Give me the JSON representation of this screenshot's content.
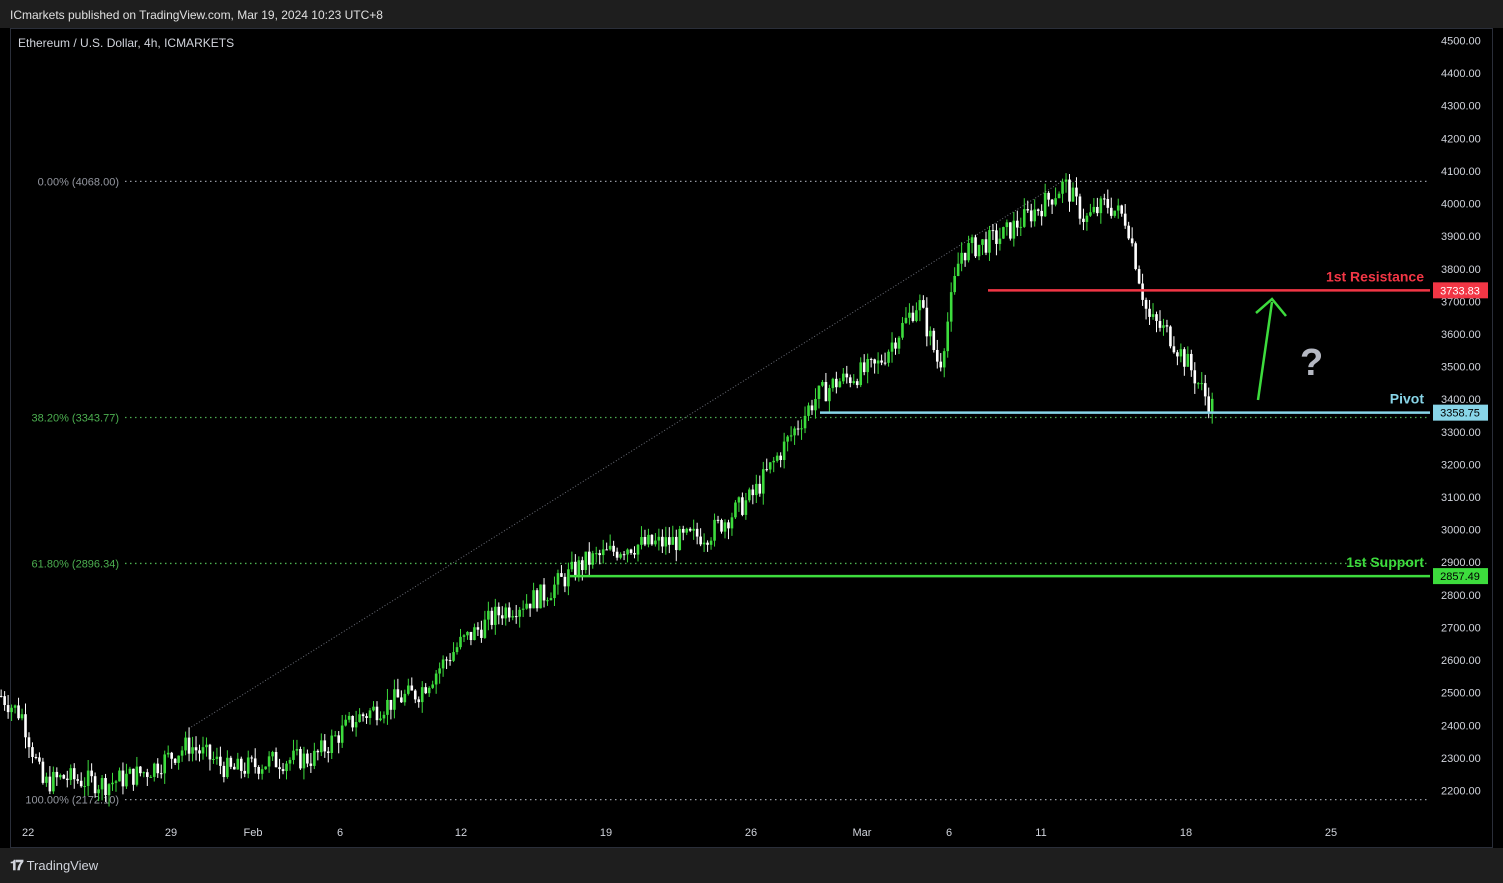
{
  "header": {
    "published": "ICmarkets published on TradingView.com, Mar 19, 2024 10:23 UTC+8"
  },
  "symbol_line": "Ethereum / U.S. Dollar, 4h, ICMARKETS",
  "footer": {
    "brand": "TradingView"
  },
  "chart_data": {
    "type": "candlestick",
    "y_axis": {
      "ticks": [
        2200,
        2300,
        2400,
        2500,
        2600,
        2700,
        2800,
        2900,
        3000,
        3100,
        3200,
        3300,
        3400,
        3500,
        3600,
        3700,
        3800,
        3900,
        4000,
        4100,
        4200,
        4300,
        4400,
        4500
      ],
      "tick_labels": [
        "2200.00",
        "2300.00",
        "2400.00",
        "2500.00",
        "2600.00",
        "2700.00",
        "2800.00",
        "2900.00",
        "3000.00",
        "3100.00",
        "3200.00",
        "3300.00",
        "3400.00",
        "3500.00",
        "3600.00",
        "3700.00",
        "3800.00",
        "3900.00",
        "4000.00",
        "4100.00",
        "4200.00",
        "4300.00",
        "4400.00",
        "4500.00"
      ],
      "range": [
        2130,
        4540
      ]
    },
    "x_axis": {
      "tick_labels": [
        "22",
        "29",
        "Feb",
        "6",
        "12",
        "19",
        "26",
        "Mar",
        "6",
        "11",
        "18",
        "25"
      ]
    },
    "fibonacci": [
      {
        "label": "0.00% (4068.00)",
        "value": 4068.0,
        "color": "#9598a1"
      },
      {
        "label": "38.20% (3343.77)",
        "value": 3343.77,
        "color": "#4caf50"
      },
      {
        "label": "61.80% (2896.34)",
        "value": 2896.34,
        "color": "#4caf50"
      },
      {
        "label": "100.00% (2172.10)",
        "value": 2172.1,
        "color": "#9598a1"
      }
    ],
    "levels": [
      {
        "name": "1st Resistance",
        "value": 3733.83,
        "label": "3733.83",
        "color": "#f23645"
      },
      {
        "name": "Pivot",
        "value": 3358.75,
        "label": "3358.75",
        "color": "#88d5e8"
      },
      {
        "name": "1st Support",
        "value": 2857.49,
        "label": "2857.49",
        "color": "#3ddc3d"
      }
    ],
    "annotation": {
      "text": "?",
      "arrow_direction": "up"
    },
    "price_path": [
      [
        "2024-01-21",
        2490
      ],
      [
        "2024-01-22",
        2430
      ],
      [
        "2024-01-23",
        2220
      ],
      [
        "2024-01-24",
        2240
      ],
      [
        "2024-01-26",
        2220
      ],
      [
        "2024-01-28",
        2260
      ],
      [
        "2024-01-30",
        2340
      ],
      [
        "2024-01-31",
        2300
      ],
      [
        "2024-02-01",
        2260
      ],
      [
        "2024-02-03",
        2290
      ],
      [
        "2024-02-05",
        2300
      ],
      [
        "2024-02-07",
        2420
      ],
      [
        "2024-02-09",
        2480
      ],
      [
        "2024-02-10",
        2500
      ],
      [
        "2024-02-12",
        2650
      ],
      [
        "2024-02-14",
        2750
      ],
      [
        "2024-02-16",
        2800
      ],
      [
        "2024-02-18",
        2900
      ],
      [
        "2024-02-20",
        2950
      ],
      [
        "2024-02-22",
        2960
      ],
      [
        "2024-02-24",
        2990
      ],
      [
        "2024-02-26",
        3100
      ],
      [
        "2024-02-27",
        3200
      ],
      [
        "2024-02-28",
        3300
      ],
      [
        "2024-02-29",
        3400
      ],
      [
        "2024-03-01",
        3450
      ],
      [
        "2024-03-03",
        3500
      ],
      [
        "2024-03-05",
        3700
      ],
      [
        "2024-03-06",
        3500
      ],
      [
        "2024-03-07",
        3850
      ],
      [
        "2024-03-09",
        3900
      ],
      [
        "2024-03-11",
        4000
      ],
      [
        "2024-03-12",
        4060
      ],
      [
        "2024-03-13",
        3950
      ],
      [
        "2024-03-14",
        4000
      ],
      [
        "2024-03-15",
        3950
      ],
      [
        "2024-03-16",
        3650
      ],
      [
        "2024-03-17",
        3600
      ],
      [
        "2024-03-18",
        3500
      ],
      [
        "2024-03-19",
        3380
      ]
    ]
  }
}
